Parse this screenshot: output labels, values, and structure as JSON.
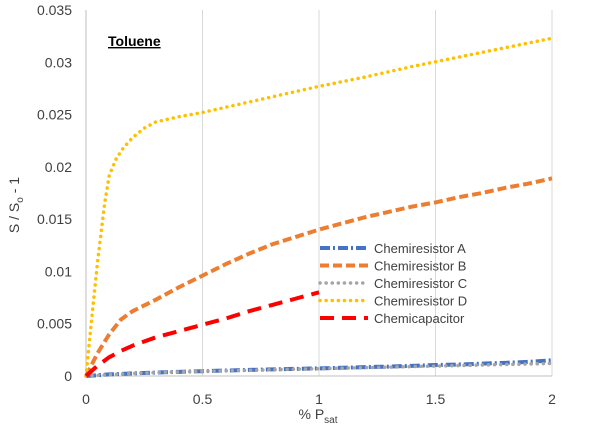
{
  "chart_data": {
    "type": "line",
    "title": "Toluene",
    "xlabel": "% P",
    "xlabel_subscript": "sat",
    "ylabel": "S / S",
    "ylabel_subscript": "o",
    "ylabel_suffix": " - 1",
    "xlim": [
      0,
      2
    ],
    "ylim": [
      0,
      0.035
    ],
    "x_ticks": [
      0,
      0.5,
      1,
      1.5,
      2
    ],
    "x_tick_labels": [
      "0",
      "0.5",
      "1",
      "1.5",
      "2"
    ],
    "y_ticks": [
      0,
      0.005,
      0.01,
      0.015,
      0.02,
      0.025,
      0.03,
      0.035
    ],
    "y_tick_labels": [
      "0",
      "0.005",
      "0.01",
      "0.015",
      "0.02",
      "0.025",
      "0.03",
      "0.035"
    ],
    "grid": "vertical",
    "legend_position": "center-right",
    "series": [
      {
        "name": "Chemiresistor A",
        "color": "#4472c4",
        "style": "dash-dot",
        "x": [
          0,
          0.1,
          0.2,
          0.3,
          0.4,
          0.5,
          0.6,
          0.7,
          0.8,
          0.9,
          1.0,
          1.1,
          1.2,
          1.3,
          1.4,
          1.5,
          1.6,
          1.7,
          1.8,
          1.9,
          2.0
        ],
        "y": [
          0,
          0.00015,
          0.00025,
          0.00033,
          0.0004,
          0.00046,
          0.00052,
          0.00058,
          0.00063,
          0.00068,
          0.00073,
          0.00079,
          0.00085,
          0.0009,
          0.00097,
          0.00105,
          0.0011,
          0.00118,
          0.00126,
          0.00135,
          0.0015
        ]
      },
      {
        "name": "Chemiresistor B",
        "color": "#ed7d31",
        "style": "dashed",
        "x": [
          0,
          0.05,
          0.1,
          0.15,
          0.2,
          0.3,
          0.4,
          0.5,
          0.6,
          0.7,
          0.8,
          0.9,
          1.0,
          1.1,
          1.2,
          1.3,
          1.4,
          1.5,
          1.6,
          1.7,
          1.8,
          1.9,
          2.0
        ],
        "y": [
          0,
          0.0022,
          0.004,
          0.0054,
          0.0062,
          0.0073,
          0.0085,
          0.0096,
          0.0107,
          0.0117,
          0.0126,
          0.0133,
          0.014,
          0.0146,
          0.0152,
          0.0157,
          0.0162,
          0.0166,
          0.0171,
          0.0175,
          0.018,
          0.0184,
          0.0189
        ]
      },
      {
        "name": "Chemiresistor C",
        "color": "#a5a5a5",
        "style": "dotted",
        "x": [
          0,
          0.2,
          0.4,
          0.6,
          0.8,
          1.0,
          1.2,
          1.4,
          1.6,
          1.8,
          2.0
        ],
        "y": [
          0,
          0.00025,
          0.0004,
          0.0005,
          0.0006,
          0.0007,
          0.0008,
          0.0009,
          0.001,
          0.0011,
          0.0012
        ]
      },
      {
        "name": "Chemiresistor D",
        "color": "#ffc000",
        "style": "dotted",
        "x": [
          0,
          0.02,
          0.05,
          0.08,
          0.1,
          0.13,
          0.16,
          0.2,
          0.25,
          0.3,
          0.4,
          0.5,
          0.6,
          0.7,
          0.8,
          0.9,
          1.0,
          1.2,
          1.4,
          1.6,
          1.8,
          2.0
        ],
        "y": [
          0,
          0.0045,
          0.011,
          0.0165,
          0.0192,
          0.0208,
          0.0218,
          0.0228,
          0.0237,
          0.0243,
          0.0248,
          0.0252,
          0.0257,
          0.0262,
          0.0267,
          0.0272,
          0.0277,
          0.0286,
          0.0296,
          0.0305,
          0.0314,
          0.0323
        ]
      },
      {
        "name": "Chemicapacitor",
        "color": "#ff0000",
        "style": "long-dash",
        "x": [
          0,
          0.05,
          0.1,
          0.15,
          0.2,
          0.3,
          0.4,
          0.5,
          0.6,
          0.7,
          0.8,
          0.9,
          1.0
        ],
        "y": [
          0,
          0.001,
          0.0018,
          0.0024,
          0.0029,
          0.0037,
          0.0043,
          0.0049,
          0.0055,
          0.0062,
          0.0068,
          0.0074,
          0.008
        ]
      }
    ]
  }
}
